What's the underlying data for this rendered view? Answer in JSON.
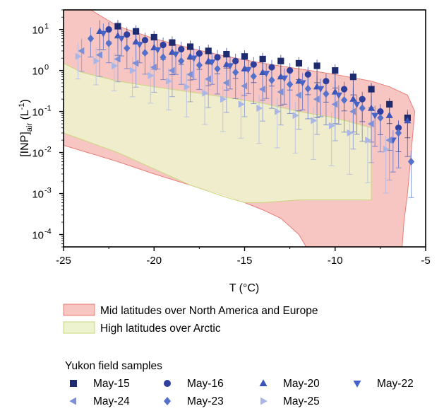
{
  "chart_data": {
    "type": "scatter",
    "x_label": "T (°C)",
    "y_label_main": "[INP]",
    "y_label_sub": "air",
    "y_label_unit": "(L",
    "y_label_unit_exp": "-1",
    "y_label_close": ")",
    "xlim": [
      -25,
      -5
    ],
    "ylim": [
      5e-05,
      30
    ],
    "y_scale": "log",
    "grid": false,
    "x_ticks": [
      -25,
      -20,
      -15,
      -10,
      -5
    ],
    "x_tick_labels": [
      "-25",
      "-20",
      "-15",
      "-10",
      "-5"
    ],
    "y_ticks": [
      0.0001,
      0.001,
      0.01,
      0.1,
      1,
      10
    ],
    "y_tick_labels": [
      {
        "base": "10",
        "exp": "-4"
      },
      {
        "base": "10",
        "exp": "-3"
      },
      {
        "base": "10",
        "exp": "-2"
      },
      {
        "base": "10",
        "exp": "-1"
      },
      {
        "base": "10",
        "exp": "0"
      },
      {
        "base": "10",
        "exp": "1"
      }
    ],
    "bands": [
      {
        "name": "Mid latitudes over North America and Europe",
        "color": "#f7c6c2",
        "edge": "#e87f78",
        "upper": [
          [
            -25,
            30
          ],
          [
            -23.5,
            30
          ],
          [
            -22,
            12
          ],
          [
            -20,
            6
          ],
          [
            -18,
            3.5
          ],
          [
            -16,
            2.2
          ],
          [
            -14,
            1.5
          ],
          [
            -12,
            1.1
          ],
          [
            -10,
            0.8
          ],
          [
            -8,
            0.55
          ],
          [
            -7,
            0.4
          ],
          [
            -6,
            0.25
          ],
          [
            -5.6,
            0.1
          ]
        ],
        "lower": [
          [
            -5.6,
            0.1
          ],
          [
            -5.8,
            0.01
          ],
          [
            -6.0,
            0.001
          ],
          [
            -6.2,
            0.0002
          ],
          [
            -6.3,
            5e-05
          ],
          [
            -11.6,
            5e-05
          ],
          [
            -12,
            0.0001
          ],
          [
            -13,
            0.00025
          ],
          [
            -14,
            0.0004
          ],
          [
            -15,
            0.0006
          ],
          [
            -16,
            0.0009
          ],
          [
            -18,
            0.0016
          ],
          [
            -20,
            0.003
          ],
          [
            -22,
            0.006
          ],
          [
            -25,
            0.015
          ]
        ]
      },
      {
        "name": "High latitudes over Arctic",
        "color": "#eef3cf",
        "edge": "#c9d77e",
        "upper": [
          [
            -25,
            1.5
          ],
          [
            -24,
            0.9
          ],
          [
            -22,
            0.55
          ],
          [
            -20,
            0.4
          ],
          [
            -18,
            0.3
          ],
          [
            -16,
            0.22
          ],
          [
            -14,
            0.16
          ],
          [
            -12,
            0.1
          ],
          [
            -10,
            0.07
          ],
          [
            -8,
            0.04
          ]
        ],
        "lower": [
          [
            -8,
            0.04
          ],
          [
            -8,
            0.0007
          ],
          [
            -10,
            0.0007
          ],
          [
            -12,
            0.0007
          ],
          [
            -14,
            0.0006
          ],
          [
            -15,
            0.0006
          ],
          [
            -16,
            0.0008
          ],
          [
            -18,
            0.0016
          ],
          [
            -20,
            0.004
          ],
          [
            -22,
            0.01
          ],
          [
            -25,
            0.03
          ]
        ]
      }
    ],
    "overlap_color": "#fde0b6",
    "series": [
      {
        "name": "May-15",
        "marker": "square",
        "color": "#1e2a6e",
        "x": [
          -22,
          -21,
          -20,
          -19,
          -18,
          -17,
          -16,
          -15,
          -14,
          -13,
          -12,
          -11,
          -10,
          -9,
          -8,
          -7,
          -6
        ],
        "y": [
          12,
          9,
          6.5,
          4.8,
          3.8,
          3.0,
          2.5,
          2.2,
          1.9,
          1.7,
          1.5,
          1.3,
          1.0,
          0.7,
          0.35,
          0.15,
          0.07
        ],
        "err": 0.25
      },
      {
        "name": "May-16",
        "marker": "circle",
        "color": "#2f3f9e",
        "x": [
          -22.5,
          -21.5,
          -20.5,
          -19.5,
          -18.5,
          -17.5,
          -16.5,
          -15.5,
          -14.5,
          -13.5,
          -12.5,
          -11.5,
          -10.5,
          -9.5,
          -8.5,
          -7.5,
          -6.5
        ],
        "y": [
          10,
          7.5,
          5.5,
          4.2,
          3.3,
          2.6,
          2.1,
          1.7,
          1.4,
          1.2,
          1.0,
          0.8,
          0.55,
          0.35,
          0.2,
          0.1,
          0.04
        ],
        "err": 0.3
      },
      {
        "name": "May-20",
        "marker": "triangle-up",
        "color": "#3a54b8",
        "x": [
          -23,
          -22,
          -21,
          -20,
          -19,
          -18,
          -17,
          -16,
          -15,
          -14,
          -13,
          -12,
          -11,
          -10,
          -9,
          -8,
          -7,
          -6
        ],
        "y": [
          9,
          7,
          5,
          3.6,
          2.8,
          2.2,
          1.7,
          1.4,
          1.1,
          0.9,
          0.7,
          0.55,
          0.4,
          0.3,
          0.2,
          0.12,
          0.08,
          0.06
        ],
        "err": 0.45
      },
      {
        "name": "May-22",
        "marker": "triangle-down",
        "color": "#4563c7",
        "x": [
          -22.8,
          -21.8,
          -20.8,
          -19.8,
          -18.8,
          -17.8,
          -16.8,
          -15.8,
          -14.8,
          -13.8,
          -12.8,
          -11.8,
          -10.8,
          -9.8,
          -8.8,
          -7.8,
          -6.8
        ],
        "y": [
          8,
          6,
          4.3,
          3.2,
          2.5,
          2.0,
          1.6,
          1.3,
          1.05,
          0.85,
          0.65,
          0.5,
          0.36,
          0.25,
          0.15,
          0.08,
          0.02
        ],
        "err": 0.4
      },
      {
        "name": "May-24",
        "marker": "triangle-left",
        "color": "#7d8fd6",
        "x": [
          -24,
          -23,
          -22,
          -21,
          -20,
          -19,
          -18,
          -17,
          -16,
          -15,
          -14,
          -13,
          -12,
          -11,
          -10,
          -9,
          -8,
          -7
        ],
        "y": [
          3.0,
          2.4,
          1.9,
          1.5,
          1.2,
          1.0,
          0.8,
          0.62,
          0.5,
          0.42,
          0.35,
          0.3,
          0.25,
          0.2,
          0.15,
          0.1,
          0.05,
          0.02
        ],
        "err": 0.5
      },
      {
        "name": "May-23",
        "marker": "diamond",
        "color": "#5471cc",
        "x": [
          -23.5,
          -22.5,
          -21.5,
          -20.5,
          -19.5,
          -18.5,
          -17.5,
          -16.5,
          -15.5,
          -14.5,
          -13.5,
          -12.5,
          -11.5,
          -10.5,
          -9.5,
          -8.5,
          -7.5,
          -6.5,
          -5.8
        ],
        "y": [
          6,
          4.6,
          3.5,
          2.7,
          2.1,
          1.7,
          1.35,
          1.1,
          0.9,
          0.72,
          0.58,
          0.46,
          0.36,
          0.27,
          0.19,
          0.12,
          0.07,
          0.03,
          0.006
        ],
        "err": 0.45
      },
      {
        "name": "May-25",
        "marker": "triangle-right",
        "color": "#a9b6e6",
        "x": [
          -24.2,
          -23.2,
          -22.2,
          -21.2,
          -20.2,
          -19.2,
          -18.2,
          -17.2,
          -16.2,
          -15.2,
          -14.2,
          -13.2,
          -12.2,
          -11.2,
          -10.2,
          -9.2,
          -8.2,
          -7.2
        ],
        "y": [
          2.2,
          1.7,
          1.3,
          1.0,
          0.75,
          0.55,
          0.4,
          0.28,
          0.2,
          0.15,
          0.12,
          0.1,
          0.08,
          0.06,
          0.045,
          0.03,
          0.02,
          0.012
        ],
        "err": 0.55
      }
    ]
  },
  "legend": {
    "bands_title": "",
    "samples_title": "Yukon field samples"
  }
}
